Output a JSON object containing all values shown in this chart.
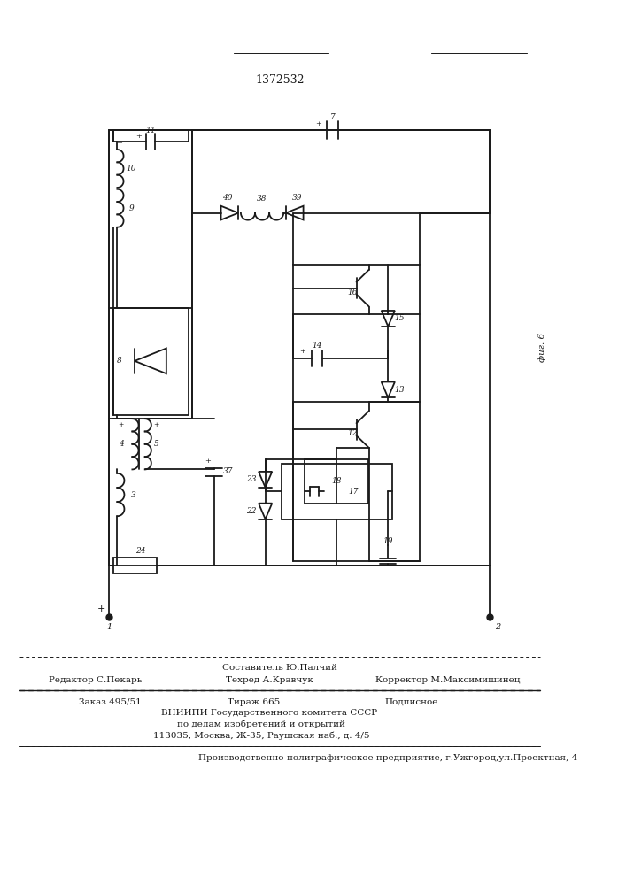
{
  "patent_number": "1372532",
  "fig_label": "фиг. 6",
  "footer_line1_center_top": "Составитель Ю.Палчий",
  "footer_line1_left": "Редактор С.Пекарь",
  "footer_line1_center": "Техред А.Кравчук",
  "footer_line1_right": "Корректор М.Максимишинец",
  "footer_line2_col1": "Заказ 495/51",
  "footer_line2_col2": "Тираж 665",
  "footer_line2_col3": "Подписное",
  "footer_line3": "ВНИИПИ Государственного комитета СССР",
  "footer_line4": "по делам изобретений и открытий",
  "footer_line5": "113035, Москва, Ж-35, Раушская наб., д. 4/5",
  "footer_bottom": "Производственно-полиграфическое предприятие, г.Ужгород,ул.Проектная, 4",
  "bg_color": "#ffffff",
  "line_color": "#1a1a1a"
}
